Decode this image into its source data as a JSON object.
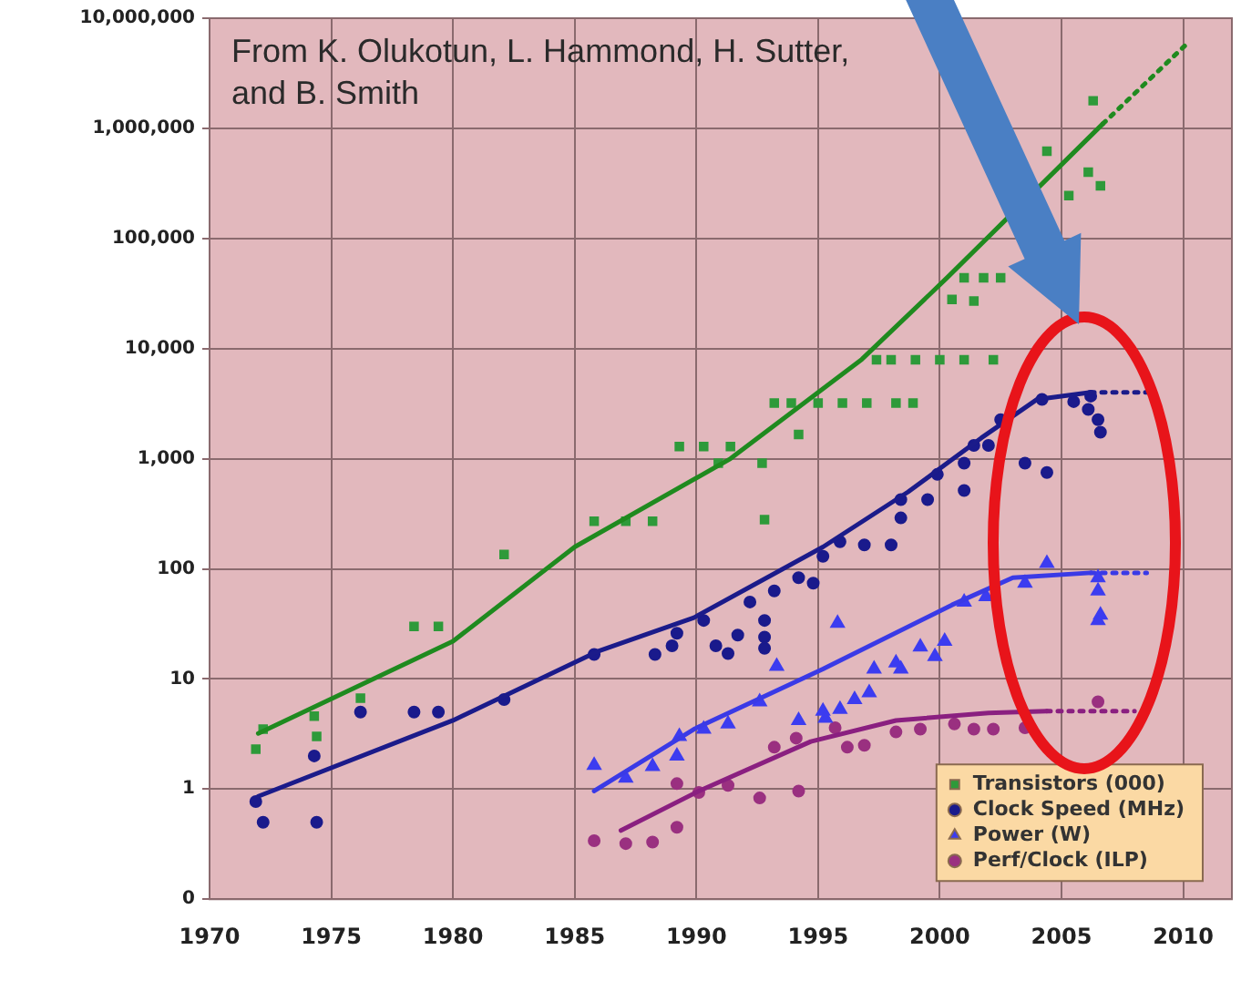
{
  "chart_data": {
    "type": "scatter",
    "log": "y",
    "grid": true,
    "legend": "bottom right",
    "annotations": [
      "From K. Olukotun, L. Hammond, H. Sutter, and B. Smith"
    ],
    "xlim": [
      1970,
      2012
    ],
    "xticks": [
      1970,
      1975,
      1980,
      1985,
      1990,
      1995,
      2000,
      2005,
      2010
    ],
    "ylim": [
      0.1,
      10000000
    ],
    "yticks": [
      {
        "value": 0.1,
        "label": "0"
      },
      {
        "value": 1,
        "label": "1"
      },
      {
        "value": 10,
        "label": "10"
      },
      {
        "value": 100,
        "label": "100"
      },
      {
        "value": 1000,
        "label": "1,000"
      },
      {
        "value": 10000,
        "label": "10,000"
      },
      {
        "value": 100000,
        "label": "100,000"
      },
      {
        "value": 1000000,
        "label": "1,000,000"
      },
      {
        "value": 10000000,
        "label": "10,000,000"
      }
    ],
    "series": [
      {
        "name": "Transistors (000)",
        "marker": "square",
        "color": "#2e9a3a",
        "x": [
          1971.9,
          1972.2,
          1974.3,
          1974.4,
          1976.2,
          1978.4,
          1979.4,
          1982.1,
          1985.8,
          1987.1,
          1988.2,
          1989.3,
          1990.3,
          1990.9,
          1991.4,
          1992.7,
          1992.8,
          1993.2,
          1993.9,
          1994.2,
          1995,
          1996,
          1997,
          1998.2,
          1998.9,
          1997.4,
          1998,
          1999,
          2000,
          2001,
          2002.2,
          2000.5,
          2001.4,
          2001,
          2001.8,
          2002.5,
          2004.4,
          2005.3,
          2006.1,
          2006.6,
          2006.3
        ],
        "values": [
          2.3,
          3.5,
          4.6,
          3,
          6.7,
          30,
          30,
          135,
          270,
          270,
          270,
          1290,
          1290,
          910,
          1290,
          910,
          280,
          3200,
          3200,
          1660,
          3200,
          3200,
          3200,
          3200,
          3200,
          7900,
          7900,
          7900,
          7900,
          7900,
          7900,
          28000,
          27000,
          44000,
          44000,
          44000,
          620000,
          245000,
          400000,
          300000,
          1780000
        ]
      },
      {
        "name": "Clock Speed (MHz)",
        "marker": "circle",
        "color": "#1a1a8c",
        "x": [
          1971.9,
          1972.2,
          1974.4,
          1974.3,
          1976.2,
          1978.4,
          1979.4,
          1982.1,
          1985.8,
          1988.3,
          1989,
          1989.2,
          1990.8,
          1991.3,
          1991.7,
          1990.3,
          1992.2,
          1992.8,
          1992.8,
          1992.8,
          1993.2,
          1994.2,
          1994.8,
          1995.2,
          1995.9,
          1996.9,
          1998,
          1998.4,
          1999.5,
          2001,
          1998.4,
          1999.9,
          2001,
          2001.4,
          2002,
          2002.5,
          2003.5,
          2004.4,
          2004.2,
          2005.5,
          2006.2,
          2006.5,
          2006.6,
          2006.1
        ],
        "values": [
          0.77,
          0.5,
          0.5,
          2,
          5,
          5,
          5,
          6.5,
          16.7,
          16.7,
          20,
          26,
          20,
          17,
          25,
          34,
          50,
          34,
          24,
          19,
          63,
          83,
          74,
          130,
          176,
          165,
          165,
          290,
          425,
          515,
          425,
          720,
          910,
          1320,
          1320,
          2260,
          910,
          750,
          3460,
          3300,
          3700,
          2260,
          1740,
          2800
        ]
      },
      {
        "name": "Power (W)",
        "marker": "triangle",
        "color": "#3c3cf0",
        "x": [
          1985.8,
          1987.1,
          1988.2,
          1989.2,
          1989.3,
          1990.3,
          1991.3,
          1992.6,
          1993.3,
          1994.2,
          1995.2,
          1995.3,
          1995.9,
          1996.5,
          1997.1,
          1997.3,
          1998.2,
          1998.4,
          1999.2,
          1999.8,
          2000.2,
          1995.8,
          2001,
          2001.9,
          2003.5,
          2004.4,
          2006.5,
          2006.5,
          2006.6,
          2006.5
        ],
        "values": [
          1.64,
          1.26,
          1.6,
          2,
          3,
          3.5,
          3.9,
          6.2,
          13,
          4.2,
          5.1,
          4.4,
          5.3,
          6.5,
          7.5,
          12.3,
          14,
          12.3,
          19.5,
          16,
          22,
          32,
          50,
          56,
          74,
          112,
          83,
          63,
          38,
          34
        ]
      },
      {
        "name": "Perf/Clock (ILP)",
        "marker": "circle",
        "color": "#9a3080",
        "x": [
          1985.8,
          1987.1,
          1988.2,
          1989.2,
          1989.2,
          1990.1,
          1991.3,
          1992.6,
          1993.2,
          1994.1,
          1994.2,
          1995.7,
          1996.2,
          1996.9,
          1998.2,
          1999.2,
          2000.6,
          2001.4,
          2002.2,
          2003.5,
          2006.5
        ],
        "values": [
          0.34,
          0.32,
          0.33,
          0.45,
          1.12,
          0.93,
          1.08,
          0.83,
          2.4,
          2.9,
          0.96,
          3.6,
          2.4,
          2.5,
          3.3,
          3.5,
          3.9,
          3.5,
          3.5,
          3.6,
          6.2
        ]
      },
      {
        "type": "line",
        "color": "#1f8a1f",
        "line_style": "solid",
        "x": [
          1972,
          1980,
          1985,
          1991.4,
          1996.8,
          2000.3,
          2002.6,
          2006.7
        ],
        "values": [
          3.2,
          22,
          158,
          1000,
          8000,
          44000,
          140000,
          1100000
        ]
      },
      {
        "type": "line",
        "color": "#1f8a1f",
        "line_style": "dotted",
        "x": [
          2006.7,
          2010.2
        ],
        "values": [
          1100000,
          6000000
        ]
      },
      {
        "type": "line",
        "color": "#1b1b8a",
        "line_style": "solid",
        "x": [
          1972,
          1980,
          1986,
          1989.9,
          1995.2,
          1998.7,
          2001.7,
          2004,
          2006.2
        ],
        "values": [
          0.86,
          4.2,
          18,
          36,
          158,
          500,
          1540,
          3460,
          4000
        ]
      },
      {
        "type": "line",
        "color": "#1b1b8a",
        "line_style": "dotted",
        "x": [
          2006.2,
          2008.5
        ],
        "values": [
          4000,
          4000
        ]
      },
      {
        "type": "line",
        "color": "#3a3ae6",
        "line_style": "solid",
        "x": [
          1985.8,
          1989.9,
          1995.2,
          2000.5,
          2003,
          2006.2
        ],
        "values": [
          0.96,
          3.5,
          12.3,
          47,
          83,
          92
        ]
      },
      {
        "type": "line",
        "color": "#3a3ae6",
        "line_style": "dotted",
        "x": [
          2006.2,
          2008.5
        ],
        "values": [
          92,
          92
        ]
      },
      {
        "type": "line",
        "color": "#8a1f80",
        "line_style": "solid",
        "x": [
          1986.9,
          1990.1,
          1994.7,
          1998.2,
          2002,
          2004.4
        ],
        "values": [
          0.42,
          0.96,
          2.7,
          4.2,
          4.9,
          5.1
        ]
      },
      {
        "type": "line",
        "color": "#8a1f80",
        "line_style": "dotted",
        "x": [
          2004.4,
          2008
        ],
        "values": [
          5.1,
          5.1
        ]
      }
    ]
  }
}
